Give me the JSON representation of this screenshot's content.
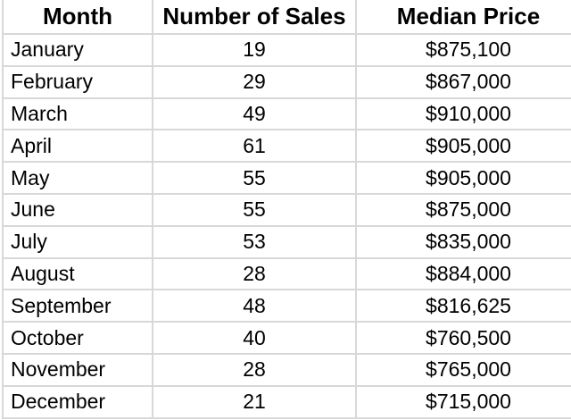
{
  "table": {
    "columns": [
      "Month",
      "Number of Sales",
      "Median Price"
    ],
    "rows": [
      {
        "month": "January",
        "sales": "19",
        "price": "$875,100"
      },
      {
        "month": "February",
        "sales": "29",
        "price": "$867,000"
      },
      {
        "month": "March",
        "sales": "49",
        "price": "$910,000"
      },
      {
        "month": "April",
        "sales": "61",
        "price": "$905,000"
      },
      {
        "month": "May",
        "sales": "55",
        "price": "$905,000"
      },
      {
        "month": "June",
        "sales": "55",
        "price": "$875,000"
      },
      {
        "month": "July",
        "sales": "53",
        "price": "$835,000"
      },
      {
        "month": "August",
        "sales": "28",
        "price": "$884,000"
      },
      {
        "month": "September",
        "sales": "48",
        "price": "$816,625"
      },
      {
        "month": "October",
        "sales": "40",
        "price": "$760,500"
      },
      {
        "month": "November",
        "sales": "28",
        "price": "$765,000"
      },
      {
        "month": "December",
        "sales": "21",
        "price": "$715,000"
      }
    ]
  },
  "chart_data": {
    "type": "table",
    "title": "",
    "columns": [
      "Month",
      "Number of Sales",
      "Median Price"
    ],
    "categories": [
      "January",
      "February",
      "March",
      "April",
      "May",
      "June",
      "July",
      "August",
      "September",
      "October",
      "November",
      "December"
    ],
    "series": [
      {
        "name": "Number of Sales",
        "values": [
          19,
          29,
          49,
          61,
          55,
          55,
          53,
          28,
          48,
          40,
          28,
          21
        ]
      },
      {
        "name": "Median Price",
        "values": [
          875100,
          867000,
          910000,
          905000,
          905000,
          875000,
          835000,
          884000,
          816625,
          760500,
          765000,
          715000
        ]
      }
    ]
  },
  "colors": {
    "background": "#ffffff",
    "text": "#000000",
    "gridline": "#d8d8d8"
  }
}
